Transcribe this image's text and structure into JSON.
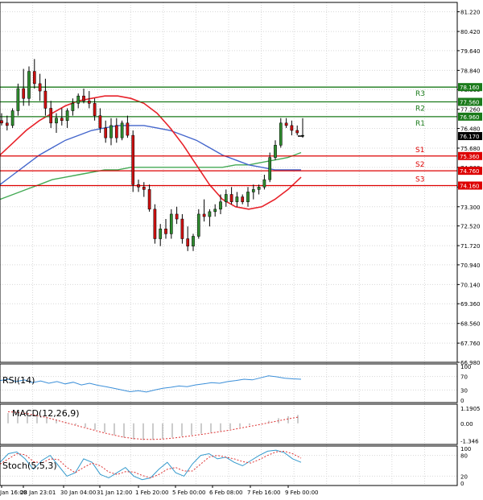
{
  "chart_data": {
    "type": "candlestick",
    "instrument_note": "",
    "main_panel": {
      "y_ticks": [
        "81.220",
        "80.420",
        "79.640",
        "78.840",
        "78.060",
        "77.260",
        "76.480",
        "75.680",
        "74.900",
        "74.100",
        "73.300",
        "72.520",
        "71.720",
        "70.940",
        "70.140",
        "69.360",
        "68.560",
        "67.760",
        "66.980"
      ],
      "ylim": [
        66.98,
        81.6
      ],
      "current_price": "76.170",
      "levels": [
        {
          "name": "R3",
          "value": 78.16,
          "label": "78.160",
          "kind": "resistance"
        },
        {
          "name": "R2",
          "value": 77.56,
          "label": "77.560",
          "kind": "resistance"
        },
        {
          "name": "R1",
          "value": 76.96,
          "label": "76.960",
          "kind": "resistance"
        },
        {
          "name": "S1",
          "value": 75.36,
          "label": "75.360",
          "kind": "support"
        },
        {
          "name": "S2",
          "value": 74.76,
          "label": "74.760",
          "kind": "support"
        },
        {
          "name": "S3",
          "value": 74.16,
          "label": "74.160",
          "kind": "support"
        }
      ],
      "candles": [
        [
          76.8,
          77.1,
          76.6,
          76.7
        ],
        [
          76.7,
          77.0,
          76.4,
          76.6
        ],
        [
          76.6,
          77.3,
          76.5,
          77.2
        ],
        [
          77.2,
          78.3,
          77.0,
          78.1
        ],
        [
          78.1,
          78.9,
          77.4,
          77.7
        ],
        [
          77.7,
          79.0,
          77.4,
          78.8
        ],
        [
          78.8,
          79.3,
          78.1,
          78.3
        ],
        [
          78.3,
          78.7,
          77.6,
          78.0
        ],
        [
          78.0,
          78.5,
          77.0,
          77.3
        ],
        [
          77.3,
          77.6,
          76.5,
          76.7
        ],
        [
          76.7,
          77.1,
          76.3,
          76.9
        ],
        [
          76.9,
          77.3,
          76.6,
          76.8
        ],
        [
          76.8,
          77.3,
          76.5,
          77.2
        ],
        [
          77.2,
          77.7,
          77.0,
          77.5
        ],
        [
          77.5,
          77.9,
          77.3,
          77.8
        ],
        [
          77.8,
          78.1,
          77.5,
          77.6
        ],
        [
          77.6,
          78.0,
          77.3,
          77.5
        ],
        [
          77.5,
          77.7,
          76.8,
          77.0
        ],
        [
          77.0,
          77.3,
          76.3,
          76.5
        ],
        [
          76.5,
          76.8,
          75.9,
          76.1
        ],
        [
          76.1,
          76.9,
          75.8,
          76.6
        ],
        [
          76.6,
          76.9,
          75.9,
          76.1
        ],
        [
          76.1,
          76.8,
          76.0,
          76.7
        ],
        [
          76.7,
          77.0,
          76.1,
          76.2
        ],
        [
          76.2,
          76.4,
          73.9,
          74.2
        ],
        [
          74.2,
          74.4,
          73.9,
          74.1
        ],
        [
          74.1,
          74.3,
          73.7,
          74.0
        ],
        [
          74.0,
          74.2,
          73.1,
          73.2
        ],
        [
          73.2,
          73.4,
          71.8,
          72.0
        ],
        [
          72.0,
          72.6,
          71.7,
          72.4
        ],
        [
          72.4,
          72.8,
          72.0,
          72.2
        ],
        [
          72.2,
          73.2,
          72.0,
          73.0
        ],
        [
          73.0,
          73.3,
          72.6,
          72.8
        ],
        [
          72.8,
          73.0,
          71.8,
          72.0
        ],
        [
          72.0,
          72.5,
          71.5,
          71.7
        ],
        [
          71.7,
          72.2,
          71.5,
          72.1
        ],
        [
          72.1,
          73.2,
          72.0,
          73.0
        ],
        [
          73.0,
          73.6,
          72.7,
          72.9
        ],
        [
          72.9,
          73.2,
          72.5,
          73.1
        ],
        [
          73.1,
          73.4,
          72.9,
          73.2
        ],
        [
          73.2,
          73.8,
          73.0,
          73.5
        ],
        [
          73.5,
          74.0,
          73.3,
          73.8
        ],
        [
          73.8,
          74.1,
          73.4,
          73.5
        ],
        [
          73.5,
          73.9,
          73.3,
          73.7
        ],
        [
          73.7,
          73.8,
          73.4,
          73.5
        ],
        [
          73.5,
          74.1,
          73.3,
          73.9
        ],
        [
          73.9,
          74.2,
          73.6,
          74.0
        ],
        [
          74.0,
          74.2,
          73.8,
          74.1
        ],
        [
          74.1,
          74.6,
          74.0,
          74.4
        ],
        [
          74.4,
          75.5,
          74.3,
          75.3
        ],
        [
          75.3,
          76.0,
          75.2,
          75.8
        ],
        [
          75.8,
          76.9,
          75.7,
          76.7
        ],
        [
          76.7,
          76.9,
          76.5,
          76.6
        ],
        [
          76.6,
          76.8,
          76.2,
          76.4
        ],
        [
          76.4,
          76.6,
          76.2,
          76.3
        ],
        [
          76.2,
          76.9,
          76.1,
          76.2
        ]
      ],
      "ma_red": [
        75.4,
        75.9,
        76.4,
        76.8,
        77.1,
        77.4,
        77.6,
        77.7,
        77.8,
        77.8,
        77.7,
        77.5,
        77.1,
        76.5,
        75.8,
        75.0,
        74.2,
        73.6,
        73.3,
        73.2,
        73.3,
        73.6,
        74.0,
        74.5
      ],
      "ma_blue": [
        74.2,
        74.6,
        75.0,
        75.4,
        75.7,
        76.0,
        76.2,
        76.4,
        76.5,
        76.6,
        76.6,
        76.6,
        76.5,
        76.4,
        76.2,
        76.0,
        75.7,
        75.4,
        75.2,
        75.0,
        74.9,
        74.8,
        74.8,
        74.8
      ],
      "ma_green": [
        73.6,
        73.8,
        74.0,
        74.2,
        74.4,
        74.5,
        74.6,
        74.7,
        74.8,
        74.8,
        74.9,
        74.9,
        74.9,
        74.9,
        74.9,
        74.9,
        74.9,
        74.9,
        75.0,
        75.0,
        75.1,
        75.2,
        75.3,
        75.5
      ]
    },
    "rsi_panel": {
      "label": "RSI(14)",
      "ticks": [
        "100",
        "70",
        "30",
        "0"
      ],
      "ylim": [
        0,
        100
      ],
      "values": [
        58,
        62,
        55,
        60,
        52,
        57,
        50,
        55,
        48,
        53,
        45,
        50,
        44,
        40,
        35,
        30,
        25,
        28,
        24,
        30,
        35,
        38,
        42,
        40,
        45,
        48,
        52,
        50,
        55,
        58,
        62,
        60,
        66,
        72,
        69,
        65,
        63,
        62
      ]
    },
    "macd_panel": {
      "label": "MACD(12,26,9)",
      "ticks": [
        "1.1905",
        "0.00",
        "-1.346"
      ],
      "ylim": [
        -1.45,
        1.3
      ],
      "histogram": [
        0.8,
        0.9,
        0.85,
        0.7,
        0.5,
        0.3,
        0.1,
        -0.1,
        -0.3,
        -0.5,
        -0.7,
        -0.9,
        -1.1,
        -1.25,
        -1.3,
        -1.28,
        -1.2,
        -1.1,
        -1.0,
        -0.9,
        -0.8,
        -0.7,
        -0.6,
        -0.45,
        -0.3,
        -0.15,
        0.0,
        0.2,
        0.4,
        0.55,
        0.65
      ],
      "signal": [
        0.9,
        0.85,
        0.75,
        0.6,
        0.45,
        0.25,
        0.05,
        -0.15,
        -0.35,
        -0.55,
        -0.75,
        -0.92,
        -1.08,
        -1.18,
        -1.24,
        -1.25,
        -1.22,
        -1.15,
        -1.06,
        -0.96,
        -0.86,
        -0.75,
        -0.64,
        -0.52,
        -0.38,
        -0.24,
        -0.1,
        0.05,
        0.2,
        0.35,
        0.48
      ]
    },
    "stoch_panel": {
      "label": "Stoch(5,5,3)",
      "ticks": [
        "100",
        "80",
        "20",
        "0"
      ],
      "ylim": [
        0,
        100
      ],
      "k": [
        60,
        85,
        90,
        70,
        40,
        65,
        80,
        50,
        20,
        30,
        70,
        60,
        25,
        15,
        30,
        45,
        20,
        10,
        15,
        40,
        60,
        30,
        20,
        55,
        80,
        85,
        70,
        75,
        60,
        50,
        65,
        80,
        92,
        95,
        88,
        70,
        60
      ],
      "d": [
        55,
        70,
        85,
        82,
        62,
        58,
        70,
        68,
        45,
        30,
        45,
        58,
        50,
        32,
        25,
        33,
        32,
        22,
        15,
        25,
        40,
        45,
        35,
        35,
        55,
        75,
        80,
        75,
        70,
        62,
        58,
        68,
        80,
        90,
        92,
        85,
        72
      ]
    },
    "x_ticks": [
      "Jan 16:00",
      "28 Jan 23:01",
      "30 Jan 04:00",
      "31 Jan 12:00",
      "1 Feb 20:00",
      "5 Feb 00:00",
      "6 Feb 08:00",
      "7 Feb 16:00",
      "9 Feb 00:00"
    ],
    "colors": {
      "bull": "#2e8b2e",
      "bear": "#cc1111",
      "wick": "#000000",
      "resistance": "#1a7a1a",
      "support": "#dd0000",
      "ma_red": "#e8222a",
      "ma_blue": "#4466cc",
      "ma_green": "#44aa55",
      "rsi": "#3b8fd9",
      "macd_hist": "#999999",
      "macd_signal": "#dd3333",
      "stoch_k": "#3399cc",
      "stoch_d": "#dd3333",
      "grid": "#d8d8d8"
    }
  }
}
